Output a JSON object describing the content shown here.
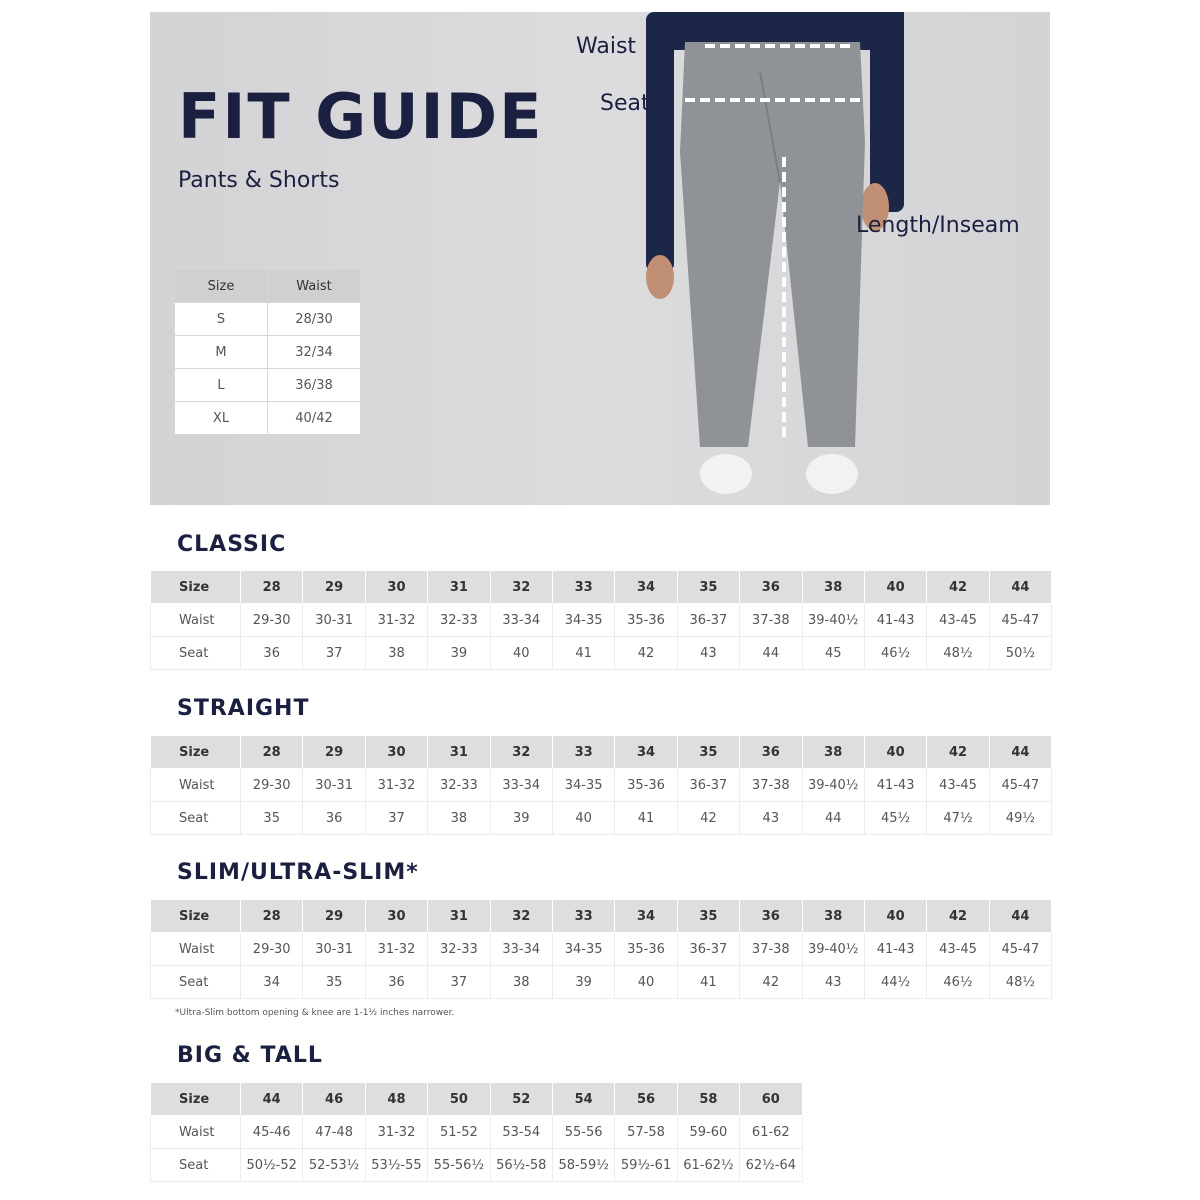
{
  "hero": {
    "title": "FIT GUIDE",
    "subtitle": "Pants & Shorts",
    "labels": {
      "waist": "Waist",
      "seat": "Seat",
      "length": "Length/Inseam"
    },
    "size_table": {
      "headers": [
        "Size",
        "Waist"
      ],
      "rows": [
        [
          "S",
          "28/30"
        ],
        [
          "M",
          "32/34"
        ],
        [
          "L",
          "36/38"
        ],
        [
          "XL",
          "40/42"
        ]
      ]
    }
  },
  "tables": [
    {
      "title": "CLASSIC",
      "rows": [
        [
          "Size",
          "28",
          "29",
          "30",
          "31",
          "32",
          "33",
          "34",
          "35",
          "36",
          "38",
          "40",
          "42",
          "44"
        ],
        [
          "Waist",
          "29-30",
          "30-31",
          "31-32",
          "32-33",
          "33-34",
          "34-35",
          "35-36",
          "36-37",
          "37-38",
          "39-40½",
          "41-43",
          "43-45",
          "45-47"
        ],
        [
          "Seat",
          "36",
          "37",
          "38",
          "39",
          "40",
          "41",
          "42",
          "43",
          "44",
          "45",
          "46½",
          "48½",
          "50½"
        ]
      ]
    },
    {
      "title": "STRAIGHT",
      "rows": [
        [
          "Size",
          "28",
          "29",
          "30",
          "31",
          "32",
          "33",
          "34",
          "35",
          "36",
          "38",
          "40",
          "42",
          "44"
        ],
        [
          "Waist",
          "29-30",
          "30-31",
          "31-32",
          "32-33",
          "33-34",
          "34-35",
          "35-36",
          "36-37",
          "37-38",
          "39-40½",
          "41-43",
          "43-45",
          "45-47"
        ],
        [
          "Seat",
          "35",
          "36",
          "37",
          "38",
          "39",
          "40",
          "41",
          "42",
          "43",
          "44",
          "45½",
          "47½",
          "49½"
        ]
      ]
    },
    {
      "title": "SLIM/ULTRA-SLIM*",
      "rows": [
        [
          "Size",
          "28",
          "29",
          "30",
          "31",
          "32",
          "33",
          "34",
          "35",
          "36",
          "38",
          "40",
          "42",
          "44"
        ],
        [
          "Waist",
          "29-30",
          "30-31",
          "31-32",
          "32-33",
          "33-34",
          "34-35",
          "35-36",
          "36-37",
          "37-38",
          "39-40½",
          "41-43",
          "43-45",
          "45-47"
        ],
        [
          "Seat",
          "34",
          "35",
          "36",
          "37",
          "38",
          "39",
          "40",
          "41",
          "42",
          "43",
          "44½",
          "46½",
          "48½"
        ]
      ]
    },
    {
      "title": "BIG & TALL",
      "rows": [
        [
          "Size",
          "44",
          "46",
          "48",
          "50",
          "52",
          "54",
          "56",
          "58",
          "60"
        ],
        [
          "Waist",
          "45-46",
          "47-48",
          "31-32",
          "51-52",
          "53-54",
          "55-56",
          "57-58",
          "59-60",
          "61-62"
        ],
        [
          "Seat",
          "50½-52",
          "52-53½",
          "53½-55",
          "55-56½",
          "56½-58",
          "58-59½",
          "59½-61",
          "61-62½",
          "62½-64"
        ]
      ]
    }
  ],
  "footnote": "*Ultra-Slim bottom opening & knee are 1-1½ inches narrower."
}
